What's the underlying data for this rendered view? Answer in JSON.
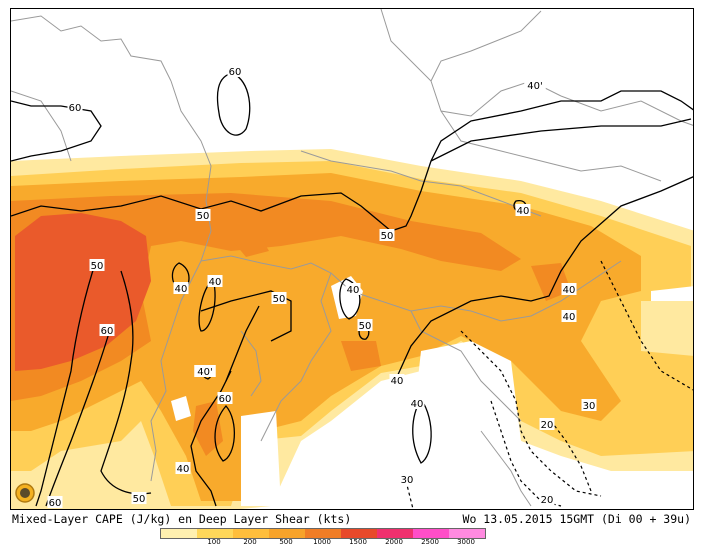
{
  "caption": {
    "left": "Mixed-Layer CAPE (J/kg) en Deep Layer Shear (kts)",
    "right": "Wo 13.05.2015 15GMT (Di 00 + 39u)"
  },
  "colorbar": {
    "labels": [
      "100",
      "200",
      "500",
      "1000",
      "1500",
      "2000",
      "2500",
      "3000"
    ],
    "colors": [
      "#fff0b0",
      "#ffd75a",
      "#ffbe3c",
      "#f7a32a",
      "#f07d26",
      "#e8492a",
      "#f0306e",
      "#ff4ec8",
      "#ff8ae0"
    ]
  },
  "map": {
    "contour_labels": [
      "60",
      "60",
      "50",
      "50",
      "50",
      "40",
      "40",
      "40",
      "40",
      "50",
      "50",
      "40",
      "40",
      "60",
      "40",
      "40",
      "40'",
      "60",
      "40",
      "30",
      "20",
      "30",
      "20",
      "50",
      "60",
      "40'"
    ]
  },
  "colors": {
    "border": "#9a9a9a",
    "contour": "#000000"
  }
}
